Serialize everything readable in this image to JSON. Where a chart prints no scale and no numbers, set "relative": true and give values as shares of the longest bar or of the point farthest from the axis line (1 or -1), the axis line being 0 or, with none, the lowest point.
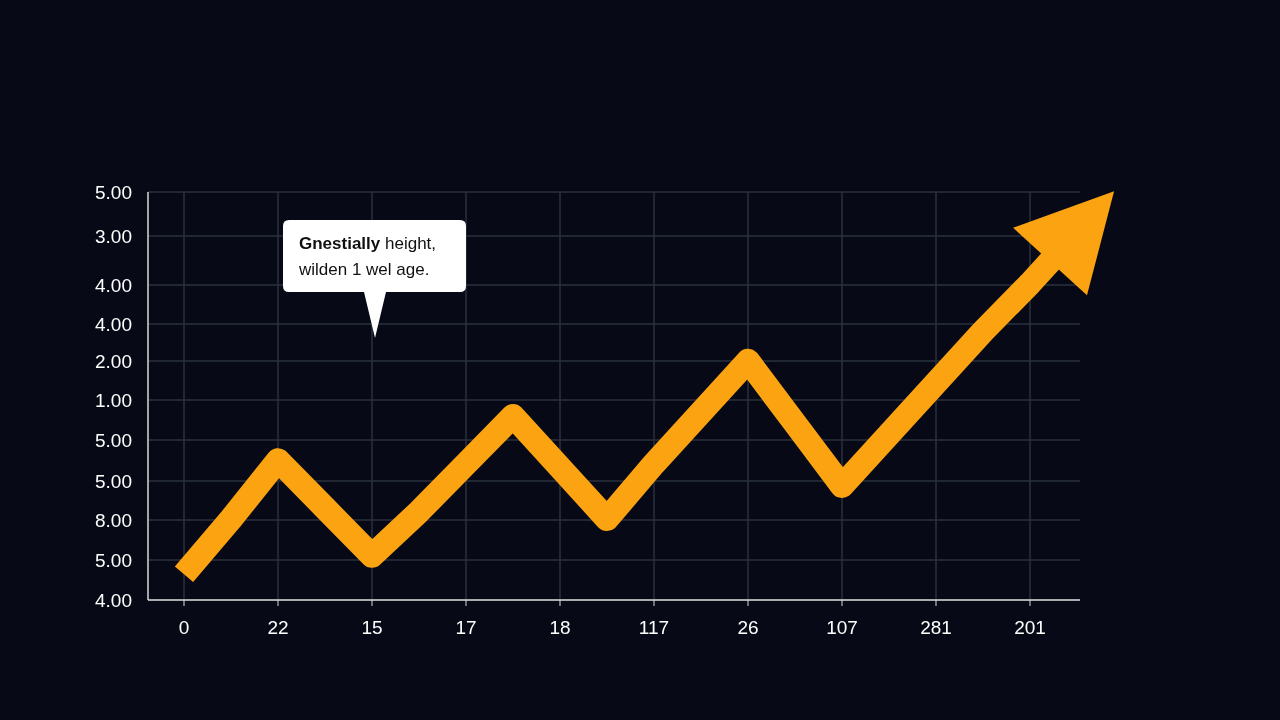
{
  "chart_data": {
    "type": "line",
    "relative": true,
    "categories": [
      "0",
      null,
      "22",
      null,
      "15",
      null,
      "17",
      null,
      "18",
      null,
      "117",
      null,
      "26",
      null,
      "107",
      null,
      "281",
      null,
      "201",
      null
    ],
    "series": [
      {
        "color": "#fca311",
        "values": [
          0.07,
          0.22,
          0.38,
          0.25,
          0.12,
          0.24,
          0.37,
          0.5,
          0.36,
          0.22,
          0.37,
          0.51,
          0.65,
          0.48,
          0.31,
          0.45,
          0.59,
          0.73,
          0.86,
          1
        ]
      }
    ],
    "grid": true,
    "marker": "none",
    "line_style": "solid",
    "annotations": [
      "Gnestially height,\nwilden 1 wel age.",
      "5.00",
      "3.00",
      "4.00",
      "4.00",
      "2.00",
      "1.00",
      "5.00",
      "5.00",
      "8.00",
      "5.00",
      "4.00"
    ]
  }
}
